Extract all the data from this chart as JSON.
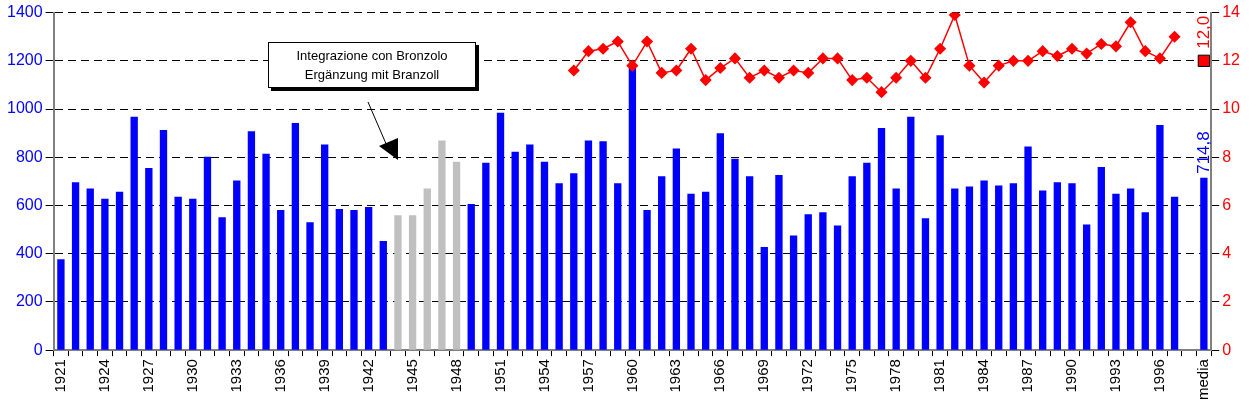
{
  "chart_data": {
    "type": "bar",
    "categories": [
      "1921",
      null,
      null,
      "1924",
      null,
      null,
      "1927",
      null,
      null,
      "1930",
      null,
      null,
      "1933",
      null,
      null,
      "1936",
      null,
      null,
      "1939",
      null,
      null,
      "1942",
      null,
      null,
      "1945",
      null,
      null,
      "1948",
      null,
      null,
      "1951",
      null,
      null,
      "1954",
      null,
      null,
      "1957",
      null,
      null,
      "1960",
      null,
      null,
      "1963",
      null,
      null,
      "1966",
      null,
      null,
      "1969",
      null,
      null,
      "1972",
      null,
      null,
      "1975",
      null,
      null,
      "1978",
      null,
      null,
      "1981",
      null,
      null,
      "1984",
      null,
      null,
      "1987",
      null,
      null,
      "1990",
      null,
      null,
      "1993",
      null,
      null,
      "1996",
      null,
      null,
      "media"
    ],
    "series": [
      {
        "color": "#0000ff",
        "colors": [
          "#0000ff",
          "#0000ff",
          "#0000ff",
          "#0000ff",
          "#0000ff",
          "#0000ff",
          "#0000ff",
          "#0000ff",
          "#0000ff",
          "#0000ff",
          "#0000ff",
          "#0000ff",
          "#0000ff",
          "#0000ff",
          "#0000ff",
          "#0000ff",
          "#0000ff",
          "#0000ff",
          "#0000ff",
          "#0000ff",
          "#0000ff",
          "#0000ff",
          "#0000ff",
          "#c0c0c0",
          "#c0c0c0",
          "#c0c0c0",
          "#c0c0c0",
          "#c0c0c0",
          "#0000ff",
          "#0000ff",
          "#0000ff",
          "#0000ff",
          "#0000ff",
          "#0000ff",
          "#0000ff",
          "#0000ff",
          "#0000ff",
          "#0000ff",
          "#0000ff",
          "#0000ff",
          "#0000ff",
          "#0000ff",
          "#0000ff",
          "#0000ff",
          "#0000ff",
          "#0000ff",
          "#0000ff",
          "#0000ff",
          "#0000ff",
          "#0000ff",
          "#0000ff",
          "#0000ff",
          "#0000ff",
          "#0000ff",
          "#0000ff",
          "#0000ff",
          "#0000ff",
          "#0000ff",
          "#0000ff",
          "#0000ff",
          "#0000ff",
          "#0000ff",
          "#0000ff",
          "#0000ff",
          "#0000ff",
          "#0000ff",
          "#0000ff",
          "#0000ff",
          "#0000ff",
          "#0000ff",
          "#0000ff",
          "#0000ff",
          "#0000ff",
          "#0000ff",
          "#0000ff",
          "#0000ff",
          "#0000ff",
          "#0000ff",
          "#0000ff"
        ],
        "values": [
          377,
          696,
          670,
          628,
          657,
          968,
          755,
          913,
          636,
          628,
          802,
          551,
          704,
          908,
          815,
          581,
          942,
          530,
          853,
          585,
          581,
          594,
          453,
          560,
          560,
          670,
          870,
          781,
          606,
          777,
          985,
          823,
          853,
          781,
          692,
          734,
          870,
          866,
          692,
          1172,
          581,
          721,
          836,
          649,
          657,
          900,
          794,
          721,
          428,
          726,
          475,
          564,
          572,
          517,
          721,
          777,
          921,
          670,
          968,
          547,
          891,
          670,
          679,
          704,
          683,
          692,
          845,
          662,
          696,
          692,
          521,
          760,
          649,
          670,
          572,
          934,
          636,
          null,
          714.8
        ],
        "value_labels": [
          null,
          null,
          null,
          null,
          null,
          null,
          null,
          null,
          null,
          null,
          null,
          null,
          null,
          null,
          null,
          null,
          null,
          null,
          null,
          null,
          null,
          null,
          null,
          null,
          null,
          null,
          null,
          null,
          null,
          null,
          null,
          null,
          null,
          null,
          null,
          null,
          null,
          null,
          null,
          null,
          null,
          null,
          null,
          null,
          null,
          null,
          null,
          null,
          null,
          null,
          null,
          null,
          null,
          null,
          null,
          null,
          null,
          null,
          null,
          null,
          null,
          null,
          null,
          null,
          null,
          null,
          null,
          null,
          null,
          null,
          null,
          null,
          null,
          null,
          null,
          null,
          null,
          null,
          "714,8"
        ]
      },
      {
        "type": "line",
        "axis": "y2",
        "color": "#ff0000",
        "marker": "diamond",
        "values": [
          null,
          null,
          null,
          null,
          null,
          null,
          null,
          null,
          null,
          null,
          null,
          null,
          null,
          null,
          null,
          null,
          null,
          null,
          null,
          null,
          null,
          null,
          null,
          null,
          null,
          null,
          null,
          null,
          null,
          null,
          null,
          null,
          null,
          null,
          null,
          11.6,
          12.4,
          12.5,
          12.8,
          11.8,
          12.8,
          11.5,
          11.6,
          12.5,
          11.2,
          11.7,
          12.1,
          11.3,
          11.6,
          11.3,
          11.6,
          11.5,
          12.1,
          12.1,
          11.2,
          11.3,
          10.7,
          11.3,
          12.0,
          11.3,
          12.5,
          13.9,
          11.8,
          11.1,
          11.8,
          12.0,
          12.0,
          12.4,
          12.2,
          12.5,
          12.3,
          12.7,
          12.6,
          13.6,
          12.4,
          12.1,
          13.0,
          null,
          null
        ]
      },
      {
        "type": "scatter",
        "axis": "y2",
        "color": "#ff0000",
        "marker": "square",
        "values": [
          null,
          null,
          null,
          null,
          null,
          null,
          null,
          null,
          null,
          null,
          null,
          null,
          null,
          null,
          null,
          null,
          null,
          null,
          null,
          null,
          null,
          null,
          null,
          null,
          null,
          null,
          null,
          null,
          null,
          null,
          null,
          null,
          null,
          null,
          null,
          null,
          null,
          null,
          null,
          null,
          null,
          null,
          null,
          null,
          null,
          null,
          null,
          null,
          null,
          null,
          null,
          null,
          null,
          null,
          null,
          null,
          null,
          null,
          null,
          null,
          null,
          null,
          null,
          null,
          null,
          null,
          null,
          null,
          null,
          null,
          null,
          null,
          null,
          null,
          null,
          null,
          null,
          null,
          12.0
        ],
        "value_labels": [
          null,
          null,
          null,
          null,
          null,
          null,
          null,
          null,
          null,
          null,
          null,
          null,
          null,
          null,
          null,
          null,
          null,
          null,
          null,
          null,
          null,
          null,
          null,
          null,
          null,
          null,
          null,
          null,
          null,
          null,
          null,
          null,
          null,
          null,
          null,
          null,
          null,
          null,
          null,
          null,
          null,
          null,
          null,
          null,
          null,
          null,
          null,
          null,
          null,
          null,
          null,
          null,
          null,
          null,
          null,
          null,
          null,
          null,
          null,
          null,
          null,
          null,
          null,
          null,
          null,
          null,
          null,
          null,
          null,
          null,
          null,
          null,
          null,
          null,
          null,
          null,
          null,
          null,
          "12,0"
        ]
      }
    ],
    "ylim": [
      0,
      1400
    ],
    "yticks": [
      0,
      200,
      400,
      600,
      800,
      1000,
      1200,
      1400
    ],
    "y2lim": [
      0,
      14
    ],
    "y2ticks": [
      0,
      2,
      4,
      6,
      8,
      10,
      12,
      14
    ],
    "grid": "y",
    "legend": false,
    "annotations": [
      "Integrazione con Bronzolo\nErgänzung mit Branzoll"
    ]
  }
}
